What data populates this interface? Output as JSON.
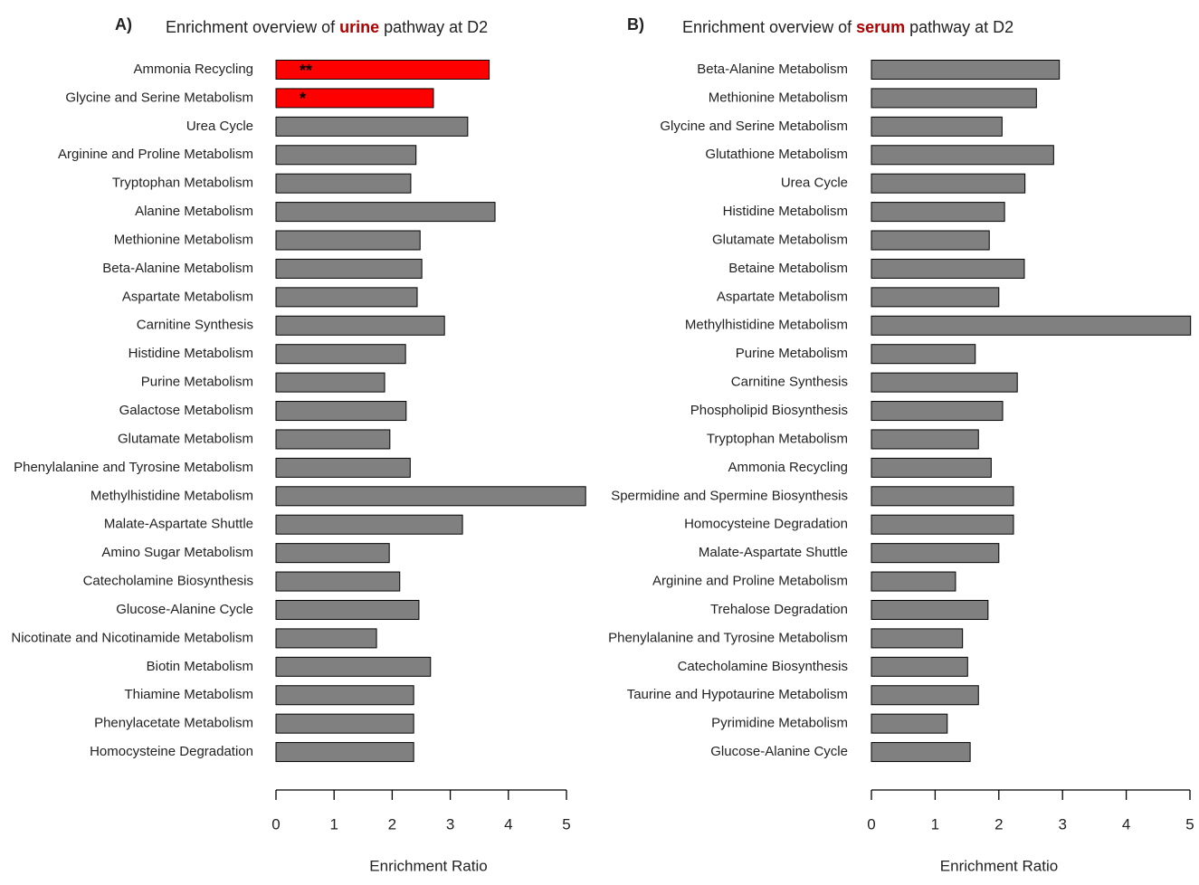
{
  "chart_data": [
    {
      "type": "barh",
      "panel": "A)",
      "title": [
        "Enrichment overview of",
        "urine",
        "pathway at D2"
      ],
      "title_highlight_color": "#b00000",
      "xlabel": "Enrichment Ratio",
      "categories": [
        "Ammonia Recycling",
        "Glycine and Serine Metabolism",
        "Urea Cycle",
        "Arginine and Proline Metabolism",
        "Tryptophan Metabolism",
        "Alanine Metabolism",
        "Methionine Metabolism",
        "Beta-Alanine Metabolism",
        "Aspartate Metabolism",
        "Carnitine Synthesis",
        "Histidine Metabolism",
        "Purine Metabolism",
        "Galactose Metabolism",
        "Glutamate Metabolism",
        "Phenylalanine and Tyrosine Metabolism",
        "Methylhistidine Metabolism",
        "Malate-Aspartate Shuttle",
        "Amino Sugar Metabolism",
        "Catecholamine Biosynthesis",
        "Glucose-Alanine Cycle",
        "Nicotinate and Nicotinamide Metabolism",
        "Biotin Metabolism",
        "Thiamine Metabolism",
        "Phenylacetate Metabolism",
        "Homocysteine Degradation"
      ],
      "values": [
        3.67,
        2.71,
        3.3,
        2.41,
        2.32,
        3.77,
        2.48,
        2.51,
        2.43,
        2.9,
        2.23,
        1.87,
        2.24,
        1.96,
        2.31,
        5.33,
        3.21,
        1.95,
        2.13,
        2.46,
        1.73,
        2.66,
        2.37,
        2.37,
        2.37
      ],
      "colors": [
        "#ff0000",
        "#ff0000",
        "#808080",
        "#808080",
        "#808080",
        "#808080",
        "#808080",
        "#808080",
        "#808080",
        "#808080",
        "#808080",
        "#808080",
        "#808080",
        "#808080",
        "#808080",
        "#808080",
        "#808080",
        "#808080",
        "#808080",
        "#808080",
        "#808080",
        "#808080",
        "#808080",
        "#808080",
        "#808080"
      ],
      "markers": [
        "**",
        "*",
        null,
        null,
        null,
        null,
        null,
        null,
        null,
        null,
        null,
        null,
        null,
        null,
        null,
        null,
        null,
        null,
        null,
        null,
        null,
        null,
        null,
        null,
        null
      ],
      "xlim": [
        0,
        5
      ],
      "xticks": [
        0,
        1,
        2,
        3,
        4,
        5
      ]
    },
    {
      "type": "barh",
      "panel": "B)",
      "title": [
        "Enrichment overview of",
        "serum",
        "pathway at D2"
      ],
      "title_highlight_color": "#b00000",
      "xlabel": "Enrichment Ratio",
      "categories": [
        "Beta-Alanine Metabolism",
        "Methionine Metabolism",
        "Glycine and Serine Metabolism",
        "Glutathione Metabolism",
        "Urea Cycle",
        "Histidine Metabolism",
        "Glutamate Metabolism",
        "Betaine Metabolism",
        "Aspartate Metabolism",
        "Methylhistidine Metabolism",
        "Purine Metabolism",
        "Carnitine Synthesis",
        "Phospholipid Biosynthesis",
        "Tryptophan Metabolism",
        "Ammonia Recycling",
        "Spermidine and Spermine Biosynthesis",
        "Homocysteine Degradation",
        "Malate-Aspartate Shuttle",
        "Arginine and Proline Metabolism",
        "Trehalose Degradation",
        "Phenylalanine and Tyrosine Metabolism",
        "Catecholamine Biosynthesis",
        "Taurine and Hypotaurine Metabolism",
        "Pyrimidine Metabolism",
        "Glucose-Alanine Cycle"
      ],
      "values": [
        2.95,
        2.59,
        2.05,
        2.86,
        2.41,
        2.09,
        1.85,
        2.4,
        2.0,
        5.01,
        1.63,
        2.29,
        2.06,
        1.68,
        1.88,
        2.23,
        2.23,
        2.0,
        1.32,
        1.83,
        1.43,
        1.51,
        1.68,
        1.19,
        1.55
      ],
      "colors": [
        "#808080",
        "#808080",
        "#808080",
        "#808080",
        "#808080",
        "#808080",
        "#808080",
        "#808080",
        "#808080",
        "#808080",
        "#808080",
        "#808080",
        "#808080",
        "#808080",
        "#808080",
        "#808080",
        "#808080",
        "#808080",
        "#808080",
        "#808080",
        "#808080",
        "#808080",
        "#808080",
        "#808080",
        "#808080"
      ],
      "xlim": [
        0,
        5
      ],
      "xticks": [
        0,
        1,
        2,
        3,
        4,
        5
      ]
    }
  ]
}
